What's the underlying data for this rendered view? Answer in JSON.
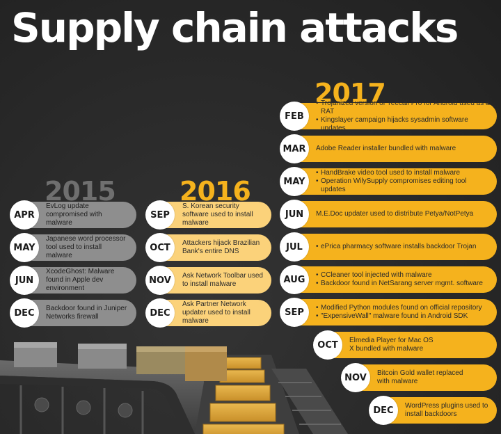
{
  "title": "Supply chain attacks",
  "colors": {
    "background": "#2b2b2b",
    "accent": "#f5b21d",
    "accent_light": "#fbd27a",
    "grey": "#8e8e8e"
  },
  "years": [
    {
      "year": "2015",
      "entries": [
        {
          "month": "APR",
          "text": "EvLog update compromised with malware"
        },
        {
          "month": "MAY",
          "text": "Japanese word processor tool used to install malware"
        },
        {
          "month": "JUN",
          "text": "XcodeGhost: Malware found in Apple dev environment"
        },
        {
          "month": "DEC",
          "text": "Backdoor found in Juniper Networks firewall"
        }
      ]
    },
    {
      "year": "2016",
      "entries": [
        {
          "month": "SEP",
          "text": "S. Korean security software used to install malware"
        },
        {
          "month": "OCT",
          "text": "Attackers hijack Brazilian Bank's entire DNS"
        },
        {
          "month": "NOV",
          "text": "Ask Network Toolbar used to install malware"
        },
        {
          "month": "DEC",
          "text": "Ask Partner Network updater used to install malware"
        }
      ]
    },
    {
      "year": "2017",
      "entries": [
        {
          "month": "FEB",
          "bullets": [
            "Trojanized version of Yeecall Pro for Android used as a RAT",
            "Kingslayer campaign hijacks sysadmin software updates"
          ]
        },
        {
          "month": "MAR",
          "text": "Adobe Reader installer bundled with malware"
        },
        {
          "month": "MAY",
          "bullets": [
            "HandBrake video tool used to install malware",
            "Operation WilySupply compromises editing tool updates"
          ]
        },
        {
          "month": "JUN",
          "text": "M.E.Doc updater used to distribute Petya/NotPetya"
        },
        {
          "month": "JUL",
          "bullets": [
            "ePrica pharmacy software installs backdoor Trojan"
          ]
        },
        {
          "month": "AUG",
          "bullets": [
            "CCleaner tool injected with malware",
            "Backdoor found in NetSarang server mgmt. software"
          ]
        },
        {
          "month": "SEP",
          "bullets": [
            "Modified Python modules found on official repository",
            "\"ExpensiveWall\" malware found in Android SDK"
          ]
        },
        {
          "month": "OCT",
          "text": "Elmedia Player for Mac OS X bundled with malware"
        },
        {
          "month": "NOV",
          "text": "Bitcoin Gold wallet replaced with malware"
        },
        {
          "month": "DEC",
          "text": "WordPress plugins used to install backdoors"
        }
      ]
    }
  ]
}
